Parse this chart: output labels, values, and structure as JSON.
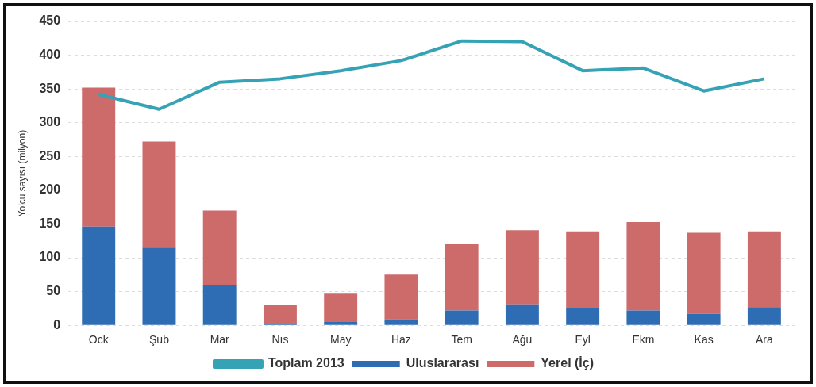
{
  "chart_data": {
    "type": "bar",
    "ylabel": "Yolcu sayısı (milyon)",
    "categories": [
      "Ock",
      "Şub",
      "Mar",
      "Nıs",
      "May",
      "Haz",
      "Tem",
      "Ağu",
      "Eyl",
      "Ekm",
      "Kas",
      "Ara"
    ],
    "series": [
      {
        "name": "Uluslararası",
        "color": "#2e6db4",
        "values": [
          146,
          115,
          60,
          2,
          5,
          9,
          22,
          31,
          26,
          22,
          17,
          27
        ]
      },
      {
        "name": "Yerel (İç)",
        "color": "#cd6b6b",
        "values": [
          206,
          157,
          110,
          28,
          42,
          66,
          98,
          110,
          113,
          131,
          120,
          112
        ]
      },
      {
        "name": "Toplam 2013",
        "type": "line",
        "color": "#35a3b5",
        "values": [
          342,
          320,
          360,
          365,
          377,
          392,
          421,
          420,
          377,
          381,
          347,
          365
        ]
      }
    ],
    "stacked": true,
    "ylim": [
      0,
      450
    ],
    "yticks": [
      0,
      50,
      100,
      150,
      200,
      250,
      300,
      350,
      400,
      450
    ],
    "grid": "y",
    "legend": "bottom",
    "marker": "none"
  }
}
